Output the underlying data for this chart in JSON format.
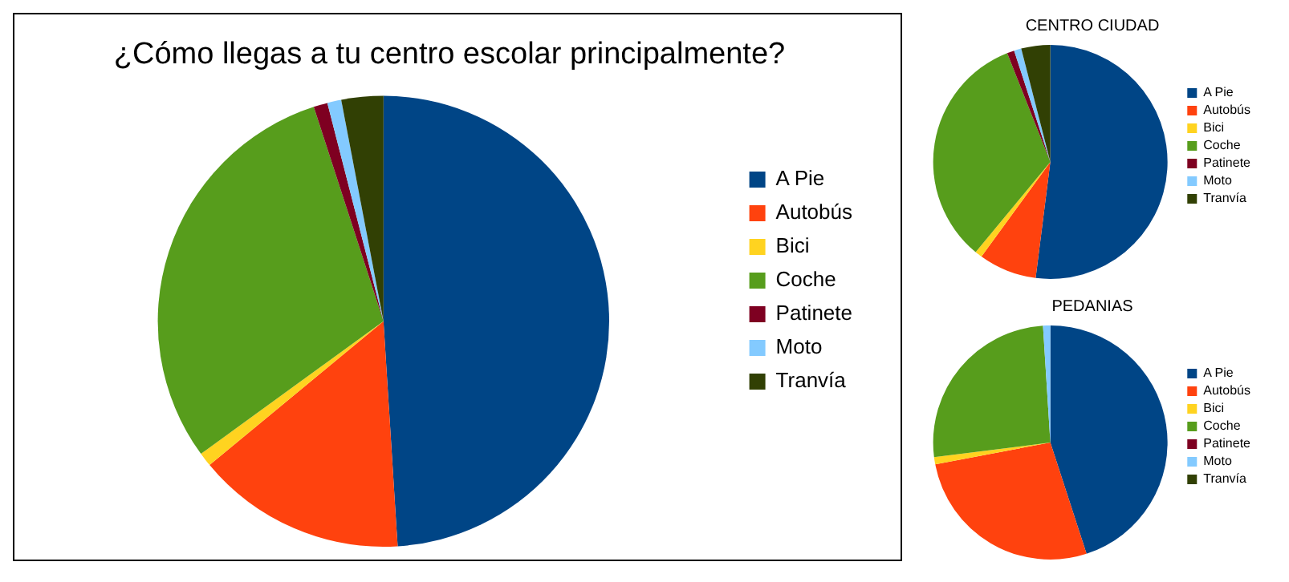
{
  "chart_data": [
    {
      "type": "pie",
      "title": "¿Cómo llegas a tu centro escolar principalmente?",
      "categories": [
        "A Pie",
        "Autobús",
        "Bici",
        "Coche",
        "Patinete",
        "Moto",
        "Tranvía"
      ],
      "values": [
        49,
        15,
        1,
        30,
        1,
        1,
        3
      ],
      "colors": [
        "#004586",
        "#ff420e",
        "#ffd320",
        "#579d1c",
        "#7e0021",
        "#83caff",
        "#314004"
      ],
      "legend": "right"
    },
    {
      "type": "pie",
      "title": "CENTRO CIUDAD",
      "categories": [
        "A Pie",
        "Autobús",
        "Bici",
        "Coche",
        "Patinete",
        "Moto",
        "Tranvía"
      ],
      "values": [
        52,
        8,
        1,
        33,
        1,
        1,
        4
      ],
      "colors": [
        "#004586",
        "#ff420e",
        "#ffd320",
        "#579d1c",
        "#7e0021",
        "#83caff",
        "#314004"
      ],
      "legend": "right"
    },
    {
      "type": "pie",
      "title": "PEDANIAS",
      "categories": [
        "A Pie",
        "Autobús",
        "Bici",
        "Coche",
        "Patinete",
        "Moto",
        "Tranvía"
      ],
      "values": [
        45,
        27,
        1,
        26,
        0,
        1,
        0
      ],
      "colors": [
        "#004586",
        "#ff420e",
        "#ffd320",
        "#579d1c",
        "#7e0021",
        "#83caff",
        "#314004"
      ],
      "legend": "right"
    }
  ]
}
